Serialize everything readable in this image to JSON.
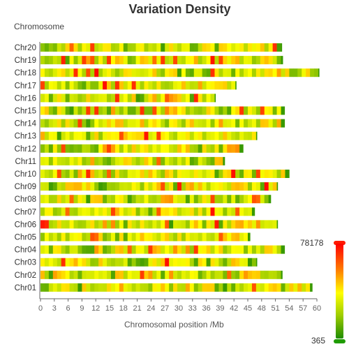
{
  "chart_data": {
    "type": "heatmap",
    "title": "Variation Density",
    "ylabel": "Chromosome",
    "xlabel": "Chromosomal position /Mb",
    "x_ticks": [
      0,
      3,
      6,
      9,
      12,
      15,
      18,
      21,
      24,
      27,
      30,
      33,
      36,
      39,
      42,
      45,
      48,
      51,
      54,
      57,
      60
    ],
    "xlim": [
      0,
      60
    ],
    "chromosomes": [
      {
        "name": "Chr20",
        "length_mb": 52.4
      },
      {
        "name": "Chr19",
        "length_mb": 52.6
      },
      {
        "name": "Chr18",
        "length_mb": 60.5
      },
      {
        "name": "Chr17",
        "length_mb": 42.5
      },
      {
        "name": "Chr16",
        "length_mb": 38.0
      },
      {
        "name": "Chr15",
        "length_mb": 53.0
      },
      {
        "name": "Chr14",
        "length_mb": 53.0
      },
      {
        "name": "Chr13",
        "length_mb": 47.0
      },
      {
        "name": "Chr12",
        "length_mb": 44.0
      },
      {
        "name": "Chr11",
        "length_mb": 40.0
      },
      {
        "name": "Chr10",
        "length_mb": 54.0
      },
      {
        "name": "Chr09",
        "length_mb": 51.5
      },
      {
        "name": "Chr08",
        "length_mb": 50.0
      },
      {
        "name": "Chr07",
        "length_mb": 46.5
      },
      {
        "name": "Chr06",
        "length_mb": 51.5
      },
      {
        "name": "Chr05",
        "length_mb": 45.5
      },
      {
        "name": "Chr04",
        "length_mb": 53.0
      },
      {
        "name": "Chr03",
        "length_mb": 47.0
      },
      {
        "name": "Chr02",
        "length_mb": 52.5
      },
      {
        "name": "Chr01",
        "length_mb": 59.0
      }
    ],
    "legend": {
      "max_label": "78178",
      "min_label": "365",
      "max": 78178,
      "min": 365
    },
    "colors": [
      "#1f8c00",
      "#9ccc00",
      "#ffff00",
      "#ff7f00",
      "#ff0000"
    ]
  }
}
